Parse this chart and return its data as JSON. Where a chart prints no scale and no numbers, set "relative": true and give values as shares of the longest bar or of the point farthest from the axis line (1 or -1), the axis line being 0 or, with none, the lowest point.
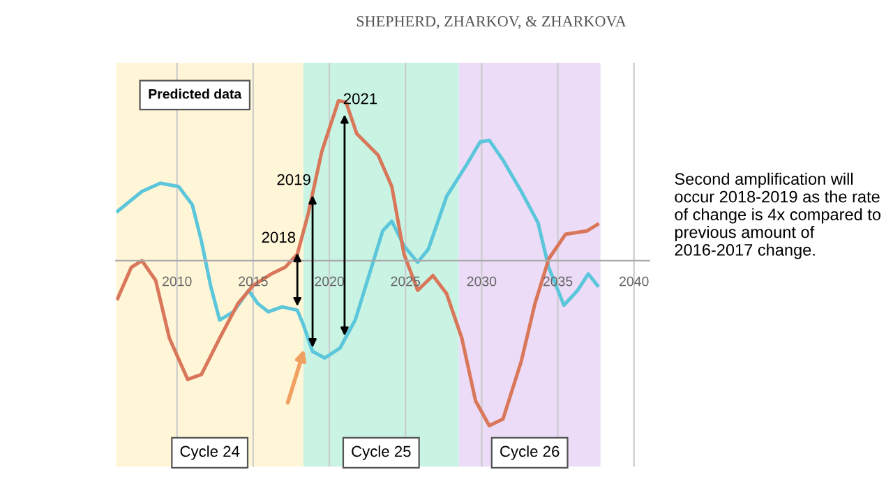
{
  "chart_data": {
    "type": "line",
    "title": "SHEPHERD, ZHARKOV, & ZHARKOVA",
    "relative": true,
    "legend": false,
    "grid": "x",
    "marker": "none",
    "line_style": "solid",
    "xlim": [
      2006,
      2041
    ],
    "xticks": [
      2010,
      2015,
      2020,
      2025,
      2030,
      2035,
      2040
    ],
    "series": [
      {
        "color": "#5cc6db",
        "x": [
          2006.1,
          2007.7,
          2008.9,
          2010.1,
          2011.0,
          2011.6,
          2012.2,
          2012.8,
          2013.7,
          2014.7,
          2015.3,
          2016.0,
          2016.9,
          2017.9,
          2018.3,
          2018.9,
          2019.7,
          2020.7,
          2021.7,
          2022.6,
          2023.5,
          2024.1,
          2024.9,
          2025.8,
          2026.5,
          2027.7,
          2029.0,
          2029.9,
          2030.5,
          2031.4,
          2032.6,
          2033.7,
          2034.4,
          2035.4,
          2036.3,
          2037.0,
          2037.6
        ],
        "values": [
          0.3,
          0.42,
          0.47,
          0.45,
          0.34,
          0.12,
          -0.15,
          -0.36,
          -0.31,
          -0.18,
          -0.26,
          -0.31,
          -0.28,
          -0.3,
          -0.39,
          -0.55,
          -0.59,
          -0.53,
          -0.36,
          -0.09,
          0.18,
          0.24,
          0.09,
          -0.01,
          0.07,
          0.39,
          0.58,
          0.72,
          0.73,
          0.61,
          0.42,
          0.23,
          -0.04,
          -0.27,
          -0.18,
          -0.08,
          -0.15
        ]
      },
      {
        "color": "#d9775a",
        "x": [
          2006.1,
          2007.0,
          2007.7,
          2008.6,
          2009.5,
          2010.7,
          2011.6,
          2012.8,
          2014.0,
          2015.0,
          2016.2,
          2017.1,
          2017.9,
          2018.6,
          2019.5,
          2020.6,
          2021.1,
          2021.8,
          2023.2,
          2024.1,
          2024.9,
          2025.8,
          2026.8,
          2027.7,
          2028.7,
          2029.6,
          2030.5,
          2031.4,
          2032.6,
          2033.5,
          2034.4,
          2035.5,
          2036.9,
          2037.6
        ],
        "values": [
          -0.23,
          -0.04,
          0,
          -0.12,
          -0.47,
          -0.72,
          -0.69,
          -0.47,
          -0.26,
          -0.15,
          -0.08,
          -0.04,
          0.04,
          0.28,
          0.66,
          0.97,
          0.96,
          0.77,
          0.64,
          0.45,
          0.04,
          -0.18,
          -0.09,
          -0.2,
          -0.47,
          -0.85,
          -1,
          -0.96,
          -0.61,
          -0.26,
          0.01,
          0.16,
          0.18,
          0.22
        ]
      }
    ],
    "bands": [
      {
        "axis": "x",
        "from": 2006,
        "to": 2018.3,
        "label": "Cycle 24",
        "color": "#fff6d8"
      },
      {
        "axis": "x",
        "from": 2018.3,
        "to": 2028.5,
        "label": "Cycle 25",
        "color": "#c9f4e4"
      },
      {
        "axis": "x",
        "from": 2028.5,
        "to": 2037.8,
        "label": "Cycle 26",
        "color": "#ecdcf7"
      }
    ],
    "annotations": [
      "Predicted data",
      {
        "text": "2018",
        "x": 2017.9,
        "y": 0.07
      },
      {
        "text": "2019",
        "x": 2018.9,
        "y": 0.42
      },
      {
        "text": "2021",
        "x": 2021.0,
        "y": 0.91
      },
      "Second amplification will occur 2018-2019 as the rate of change is 4x compared to previous amount of 2016-2017 change."
    ]
  }
}
